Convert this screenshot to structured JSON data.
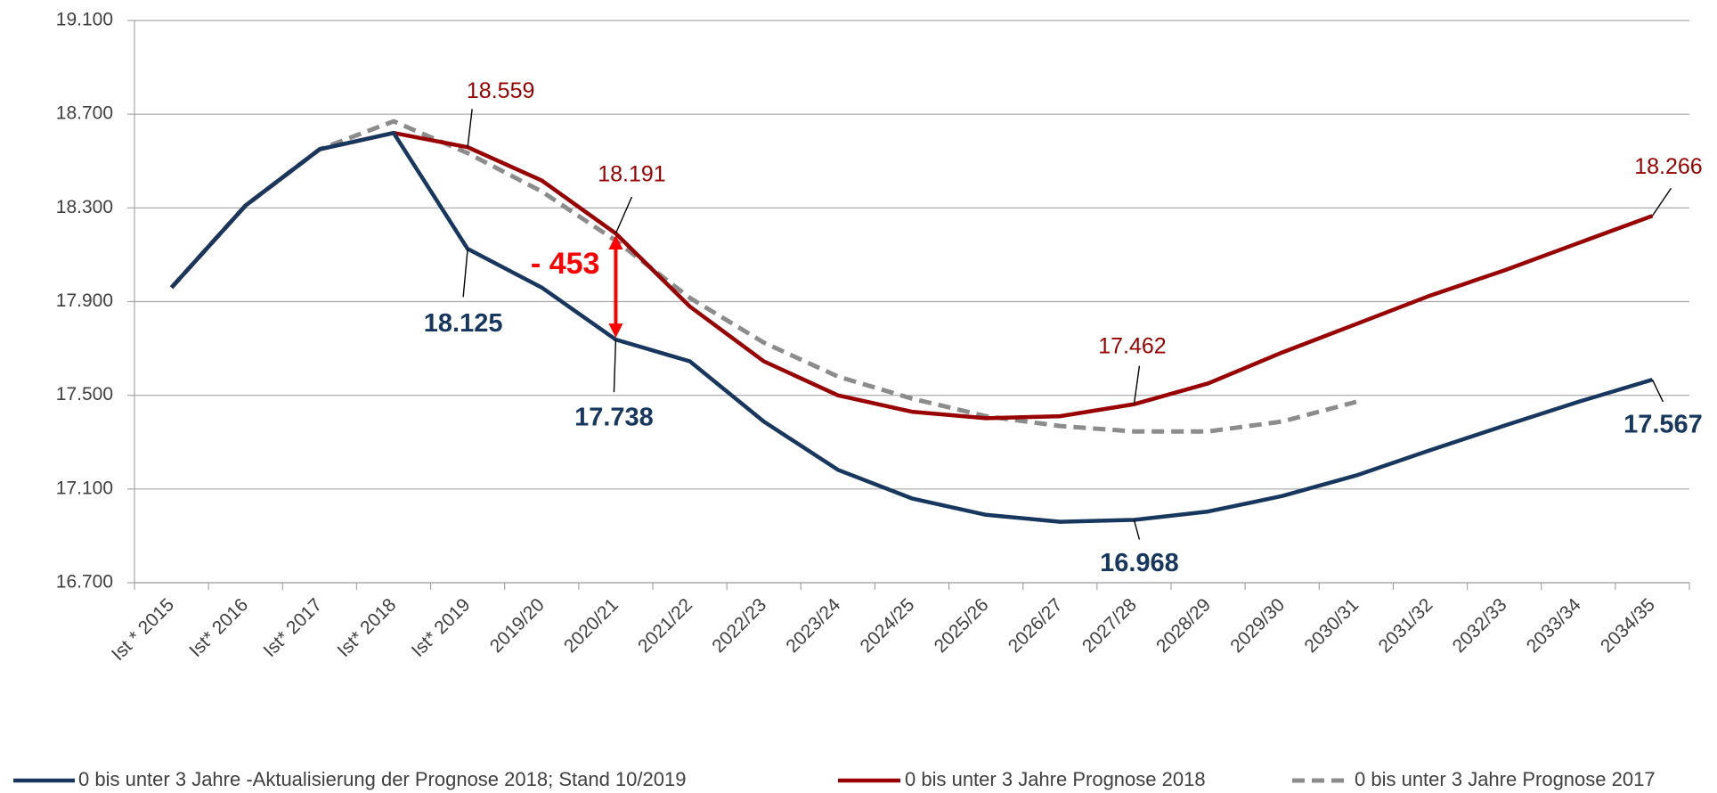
{
  "chart_data": {
    "type": "line",
    "categories": [
      "Ist * 2015",
      "Ist* 2016",
      "Ist* 2017",
      "Ist* 2018",
      "Ist* 2019",
      "2019/20",
      "2020/21",
      "2021/22",
      "2022/23",
      "2023/24",
      "2024/25",
      "2025/26",
      "2026/27",
      "2027/28",
      "2028/29",
      "2029/30",
      "2030/31",
      "2031/32",
      "2032/33",
      "2033/34",
      "2034/35"
    ],
    "ylim": [
      16700,
      19100
    ],
    "yticks": [
      {
        "value": 16700,
        "label": "16.700"
      },
      {
        "value": 17100,
        "label": "17.100"
      },
      {
        "value": 17500,
        "label": "17.500"
      },
      {
        "value": 17900,
        "label": "17.900"
      },
      {
        "value": 18300,
        "label": "18.300"
      },
      {
        "value": 18700,
        "label": "18.700"
      },
      {
        "value": 19100,
        "label": "19.100"
      }
    ],
    "grid": true,
    "legend": "bottom",
    "annotation": "- 453",
    "series": [
      {
        "name": "0 bis unter 3 Jahre -Aktualisierung der Prognose 2018; Stand 10/2019",
        "color": "#17375e",
        "dash": false,
        "values": [
          17960,
          18310,
          18550,
          18620,
          18125,
          17960,
          17738,
          17645,
          17388,
          17182,
          17060,
          16990,
          16960,
          16968,
          17004,
          17070,
          17158,
          17266,
          17370,
          17472,
          17567
        ],
        "value_labels": [
          null,
          null,
          null,
          null,
          "18.125",
          null,
          "17.738",
          null,
          null,
          null,
          null,
          null,
          null,
          "16.968",
          null,
          null,
          null,
          null,
          null,
          null,
          "17.567"
        ]
      },
      {
        "name": "0 bis unter 3 Jahre Prognose 2018",
        "color": "#990000",
        "dash": false,
        "values": [
          17960,
          18310,
          18550,
          18620,
          18559,
          18417,
          18191,
          17879,
          17645,
          17500,
          17430,
          17402,
          17411,
          17462,
          17551,
          17683,
          17804,
          17926,
          18033,
          18150,
          18266
        ],
        "value_labels": [
          null,
          null,
          null,
          null,
          "18.559",
          null,
          "18.191",
          null,
          null,
          null,
          null,
          null,
          null,
          "17.462",
          null,
          null,
          null,
          null,
          null,
          null,
          "18.266"
        ]
      },
      {
        "name": "0 bis unter 3 Jahre Prognose 2017",
        "color": "#8c8c8c",
        "dash": true,
        "values": [
          17960,
          18310,
          18550,
          18670,
          18534,
          18370,
          18160,
          17916,
          17725,
          17580,
          17486,
          17411,
          17369,
          17346,
          17346,
          17388,
          17472,
          null,
          null,
          null,
          null
        ]
      }
    ]
  }
}
